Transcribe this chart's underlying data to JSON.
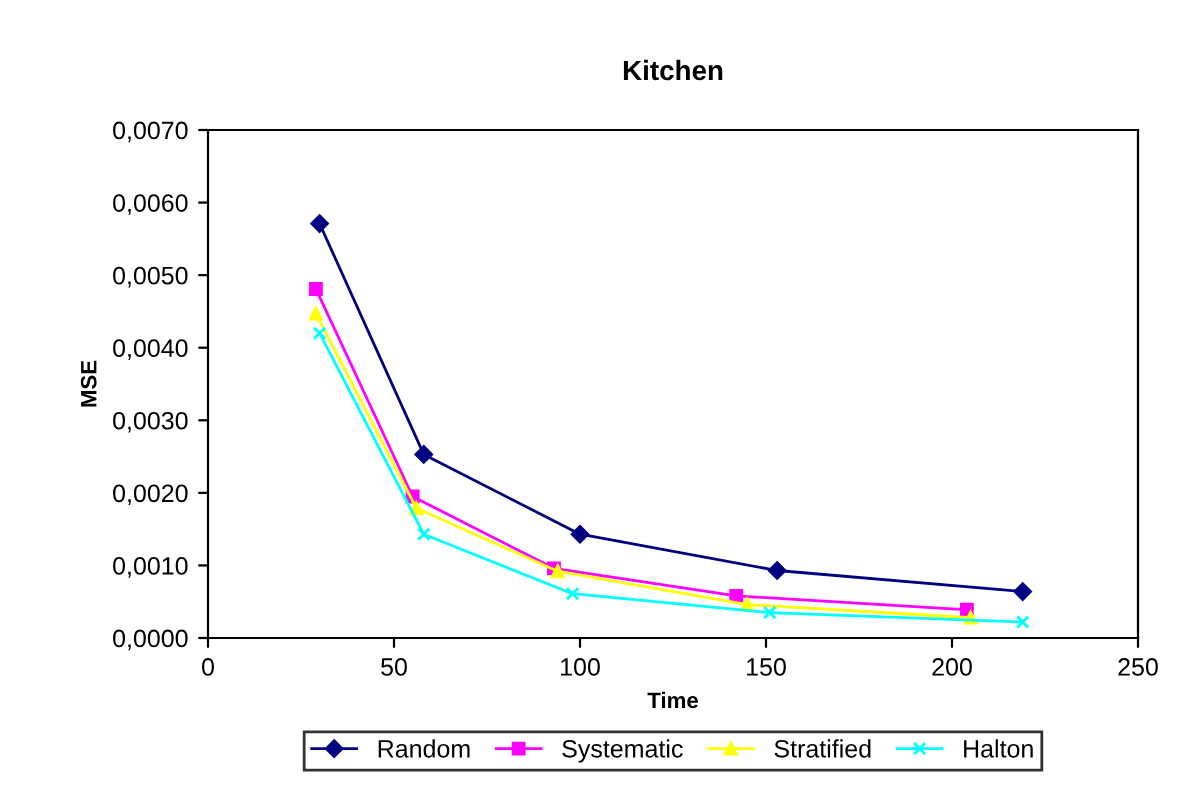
{
  "chart_data": {
    "type": "line",
    "title": "Kitchen",
    "xlabel": "Time",
    "ylabel": "MSE",
    "xlim": [
      0,
      250
    ],
    "xticks": [
      0,
      50,
      100,
      150,
      200,
      250
    ],
    "ylim": [
      0,
      0.007
    ],
    "yticks": [
      {
        "value": 0,
        "label": "0,0000"
      },
      {
        "value": 0.001,
        "label": "0,0010"
      },
      {
        "value": 0.002,
        "label": "0,0020"
      },
      {
        "value": 0.003,
        "label": "0,0030"
      },
      {
        "value": 0.004,
        "label": "0,0040"
      },
      {
        "value": 0.005,
        "label": "0,0050"
      },
      {
        "value": 0.006,
        "label": "0,0060"
      },
      {
        "value": 0.007,
        "label": "0,0070"
      }
    ],
    "grid": false,
    "legend": "bottom",
    "series": [
      {
        "name": "Random",
        "color": "#000080",
        "marker": "diamond",
        "x": [
          30,
          58,
          100,
          153,
          219
        ],
        "values": [
          0.00571,
          0.00253,
          0.00143,
          0.00093,
          0.00064
        ]
      },
      {
        "name": "Systematic",
        "color": "#ff00ff",
        "marker": "square",
        "x": [
          29,
          55,
          93,
          142,
          204
        ],
        "values": [
          0.00481,
          0.00195,
          0.00096,
          0.00058,
          0.00039
        ]
      },
      {
        "name": "Stratified",
        "color": "#ffff00",
        "marker": "triangle",
        "x": [
          29,
          56,
          94,
          145,
          205
        ],
        "values": [
          0.00447,
          0.00179,
          0.00092,
          0.00046,
          0.00028
        ]
      },
      {
        "name": "Halton",
        "color": "#00ffff",
        "marker": "cross",
        "x": [
          30,
          58,
          98,
          151,
          219
        ],
        "values": [
          0.0042,
          0.00143,
          0.00061,
          0.00035,
          0.00022
        ]
      }
    ]
  }
}
